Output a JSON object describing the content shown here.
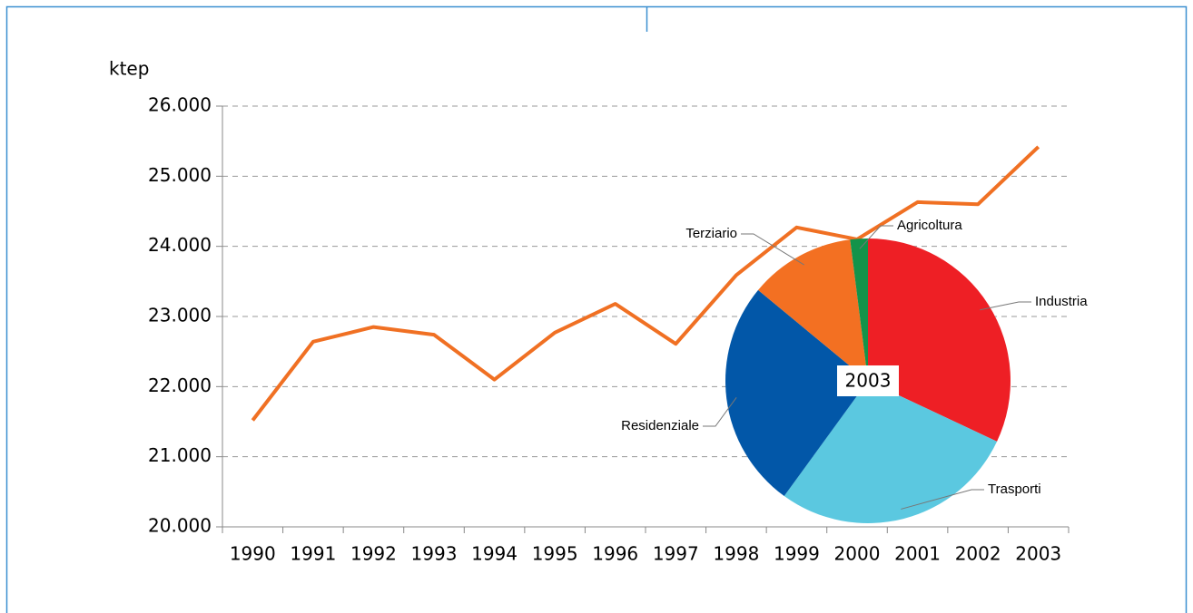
{
  "chart_data": [
    {
      "type": "line",
      "y_label": "ktep",
      "categories": [
        "1990",
        "1991",
        "1992",
        "1993",
        "1994",
        "1995",
        "1996",
        "1997",
        "1998",
        "1999",
        "2000",
        "2001",
        "2002",
        "2003"
      ],
      "series": [
        {
          "color": "#f07023",
          "values": [
            21520,
            22640,
            22850,
            22740,
            22100,
            22770,
            23180,
            22610,
            23590,
            24270,
            24100,
            24630,
            24600,
            25420
          ]
        }
      ],
      "ylim": [
        20000,
        26000
      ],
      "yticks": [
        {
          "value": 20000,
          "label": "20.000"
        },
        {
          "value": 21000,
          "label": "21.000"
        },
        {
          "value": 22000,
          "label": "22.000"
        },
        {
          "value": 23000,
          "label": "23.000"
        },
        {
          "value": 24000,
          "label": "24.000"
        },
        {
          "value": 25000,
          "label": "25.000"
        },
        {
          "value": 26000,
          "label": "26.000"
        }
      ],
      "grid": true
    },
    {
      "type": "pie",
      "title": "2003",
      "categories": [
        "Industria",
        "Trasporti",
        "Residenziale",
        "Terziario",
        "Agricoltura"
      ],
      "values": [
        32,
        28,
        26,
        12,
        2
      ],
      "colors": [
        "#ee1f25",
        "#5bc8e0",
        "#0257a8",
        "#f37022",
        "#13934a"
      ]
    }
  ]
}
